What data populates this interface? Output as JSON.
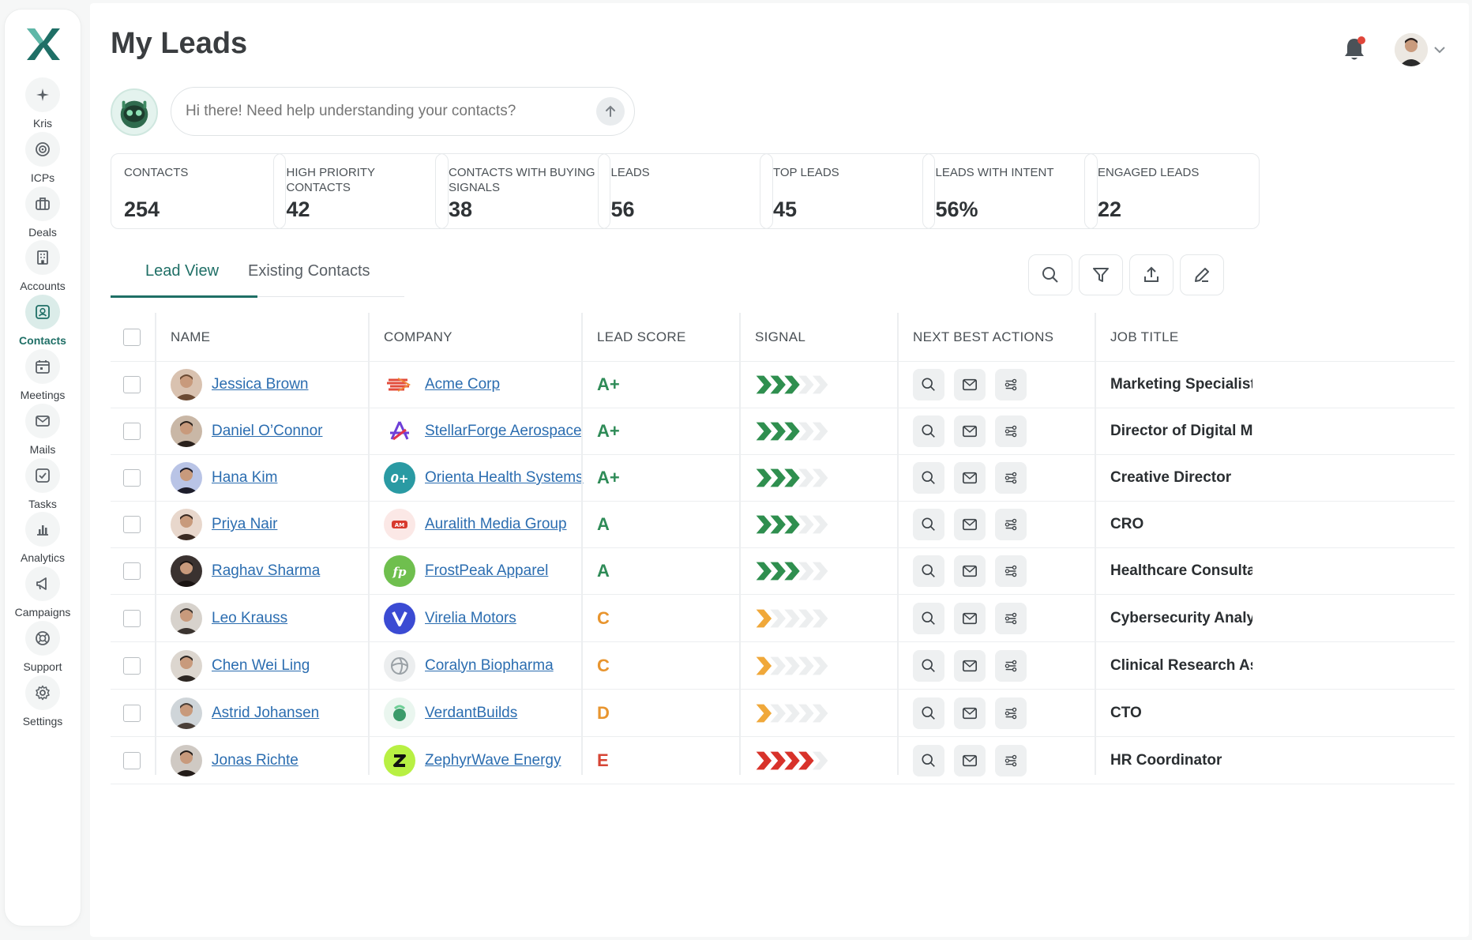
{
  "sidebar": {
    "items": [
      {
        "label": "Kris",
        "icon": "sparkle-icon",
        "active": false
      },
      {
        "label": "ICPs",
        "icon": "target-icon",
        "active": false
      },
      {
        "label": "Deals",
        "icon": "briefcase-icon",
        "active": false
      },
      {
        "label": "Accounts",
        "icon": "building-icon",
        "active": false
      },
      {
        "label": "Contacts",
        "icon": "contact-card-icon",
        "active": true
      },
      {
        "label": "Meetings",
        "icon": "calendar-icon",
        "active": false
      },
      {
        "label": "Mails",
        "icon": "mail-icon",
        "active": false
      },
      {
        "label": "Tasks",
        "icon": "checkbox-icon",
        "active": false
      },
      {
        "label": "Analytics",
        "icon": "bar-chart-icon",
        "active": false
      },
      {
        "label": "Campaigns",
        "icon": "megaphone-icon",
        "active": false
      },
      {
        "label": "Support",
        "icon": "lifebuoy-icon",
        "active": false
      },
      {
        "label": "Settings",
        "icon": "gear-icon",
        "active": false
      }
    ]
  },
  "header": {
    "title": "My Leads"
  },
  "assistant": {
    "placeholder": "Hi there! Need help understanding your contacts?"
  },
  "stats": [
    {
      "label": "CONTACTS",
      "value": "254"
    },
    {
      "label": "HIGH PRIORITY CONTACTS",
      "value": "42"
    },
    {
      "label": "CONTACTS WITH BUYING SIGNALS",
      "value": "38"
    },
    {
      "label": "LEADS",
      "value": "56"
    },
    {
      "label": "TOP LEADS",
      "value": "45"
    },
    {
      "label": "LEADS WITH INTENT",
      "value": "56%"
    },
    {
      "label": "ENGAGED LEADS",
      "value": "22"
    }
  ],
  "tabs": {
    "lead_view": "Lead View",
    "existing_contacts": "Existing Contacts"
  },
  "table": {
    "headers": {
      "name": "NAME",
      "company": "COMPANY",
      "lead_score": "LEAD SCORE",
      "signal": "SIGNAL",
      "next_best_actions": "NEXT BEST ACTIONS",
      "job_title": "JOB TITLE"
    },
    "rows": [
      {
        "name": "Jessica Brown",
        "company": "Acme Corp",
        "score": "A+",
        "signal": 3,
        "job": "Marketing Specialist"
      },
      {
        "name": "Daniel O’Connor",
        "company": "StellarForge Aerospace",
        "score": "A+",
        "signal": 3,
        "job": "Director of Digital Ma"
      },
      {
        "name": "Hana Kim",
        "company": "Orienta Health Systems",
        "score": "A+",
        "signal": 3,
        "job": "Creative Director"
      },
      {
        "name": "Priya Nair",
        "company": "Auralith Media Group",
        "score": "A",
        "signal": 3,
        "job": "CRO"
      },
      {
        "name": "Raghav Sharma",
        "company": "FrostPeak Apparel",
        "score": "A",
        "signal": 3,
        "job": "Healthcare Consulta"
      },
      {
        "name": "Leo Krauss",
        "company": "Virelia Motors",
        "score": "C",
        "signal": 1,
        "job": "Cybersecurity Analy"
      },
      {
        "name": "Chen Wei Ling",
        "company": "Coralyn Biopharma",
        "score": "C",
        "signal": 1,
        "job": "Clinical Research As"
      },
      {
        "name": "Astrid Johansen",
        "company": "VerdantBuilds",
        "score": "D",
        "signal": 1,
        "job": "CTO"
      },
      {
        "name": "Jonas Richte",
        "company": "ZephyrWave Energy",
        "score": "E",
        "signal": 4,
        "job": "HR Coordinator"
      }
    ]
  },
  "colors": {
    "accent": "#1f6f66",
    "score_green": "#2e8b57",
    "score_orange": "#e8952f",
    "score_red": "#d64535",
    "signal_green": "#2f8f4f",
    "signal_orange": "#f0a83a",
    "signal_red": "#d8322a",
    "signal_empty": "#eceeef",
    "link": "#2b6db0"
  }
}
